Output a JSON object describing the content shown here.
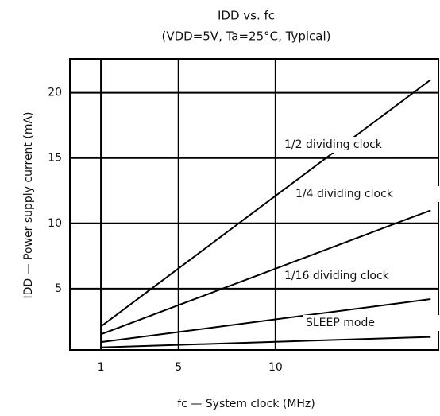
{
  "chart_data": {
    "type": "line",
    "title": "IDD vs. fc",
    "subtitle": "(VDD=5V, Ta=25°C, Typical)",
    "x_label": "fc — System clock (MHz)",
    "y_label": "IDD — Power supply current (mA)",
    "x": [
      1,
      18
    ],
    "series": [
      {
        "color": "#000000",
        "values": [
          2.1,
          21
        ]
      },
      {
        "color": "#000000",
        "values": [
          1.5,
          11
        ]
      },
      {
        "color": "#000000",
        "values": [
          0.9,
          4.2
        ]
      },
      {
        "color": "#000000",
        "values": [
          0.5,
          1.3
        ]
      }
    ],
    "annotations": [
      "1/2 dividing clock",
      "1/4 dividing clock",
      "1/16 dividing clock",
      "SLEEP mode"
    ],
    "xlim": [
      -0.6,
      18.4
    ],
    "xticks": [
      1,
      5,
      10
    ],
    "ylim": [
      0.3,
      22.6
    ],
    "yticks": [
      5,
      10,
      15,
      20
    ],
    "grid": true
  }
}
